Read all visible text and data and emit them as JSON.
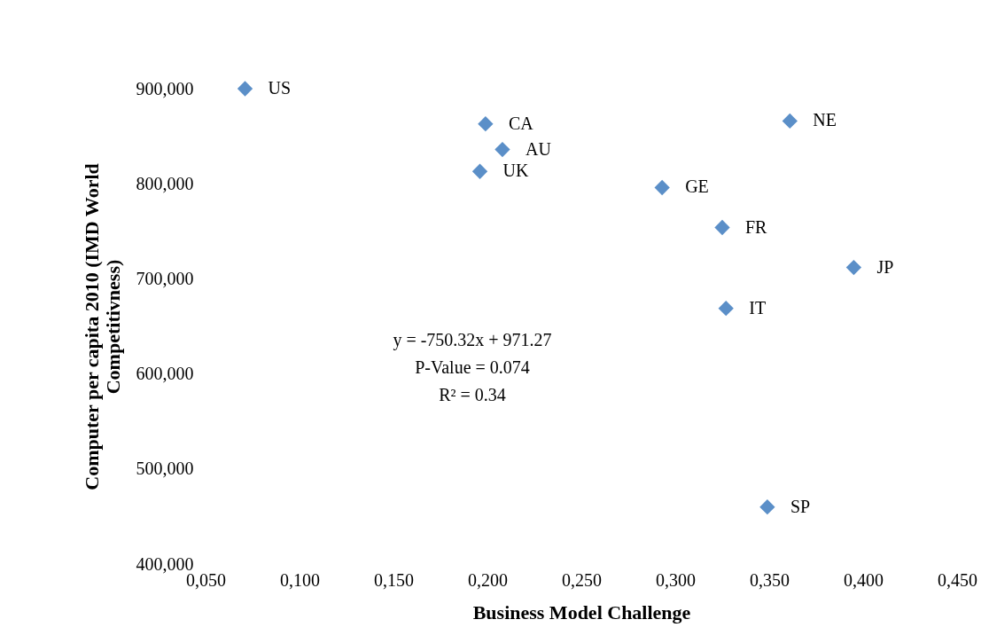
{
  "chart_data": {
    "type": "scatter",
    "xlabel": "Business Model Challenge",
    "ylabel": "Computer per capita 2010 (IMD World Competitivness)",
    "x": [
      0.071,
      0.199,
      0.208,
      0.196,
      0.293,
      0.361,
      0.325,
      0.395,
      0.327,
      0.349
    ],
    "series": [
      {
        "color": "#5b8fc8",
        "values": [
          900,
          863,
          836,
          813,
          796,
          866,
          754,
          712,
          669,
          460
        ]
      }
    ],
    "xlim": [
      0.05,
      0.45
    ],
    "xticks": [
      {
        "value": 0.05,
        "label": "0,050"
      },
      {
        "value": 0.1,
        "label": "0,100"
      },
      {
        "value": 0.15,
        "label": "0,150"
      },
      {
        "value": 0.2,
        "label": "0,200"
      },
      {
        "value": 0.25,
        "label": "0,250"
      },
      {
        "value": 0.3,
        "label": "0,300"
      },
      {
        "value": 0.35,
        "label": "0,350"
      },
      {
        "value": 0.4,
        "label": "0,400"
      },
      {
        "value": 0.45,
        "label": "0,450"
      }
    ],
    "ylim": [
      400,
      900
    ],
    "yticks": [
      {
        "value": 400,
        "label": "400,000"
      },
      {
        "value": 500,
        "label": "500,000"
      },
      {
        "value": 600,
        "label": "600,000"
      },
      {
        "value": 700,
        "label": "700,000"
      },
      {
        "value": 800,
        "label": "800,000"
      },
      {
        "value": 900,
        "label": "900,000"
      }
    ],
    "marker": "diamond",
    "annotations": [
      {
        "text": "US",
        "x": 0.071,
        "y": 900
      },
      {
        "text": "CA",
        "x": 0.199,
        "y": 863
      },
      {
        "text": "AU",
        "x": 0.208,
        "y": 836
      },
      {
        "text": "UK",
        "x": 0.196,
        "y": 813
      },
      {
        "text": "GE",
        "x": 0.293,
        "y": 796
      },
      {
        "text": "NE",
        "x": 0.361,
        "y": 866
      },
      {
        "text": "FR",
        "x": 0.325,
        "y": 754
      },
      {
        "text": "JP",
        "x": 0.395,
        "y": 712
      },
      {
        "text": "IT",
        "x": 0.327,
        "y": 669
      },
      {
        "text": "SP",
        "x": 0.349,
        "y": 460
      },
      "y = -750.32x + 971.27",
      "P-Value = 0.074",
      "R² = 0.34"
    ]
  }
}
